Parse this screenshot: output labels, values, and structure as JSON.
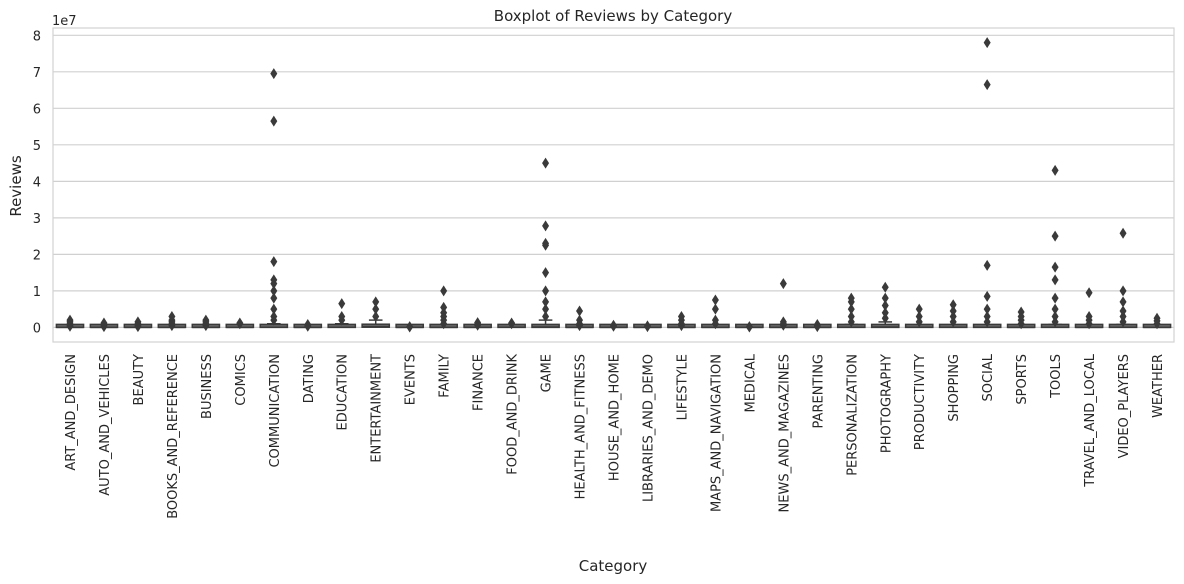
{
  "chart_data": {
    "type": "box",
    "title": "Boxplot of Reviews by Category",
    "xlabel": "Category",
    "ylabel": "Reviews",
    "y_offset_label": "1e7",
    "ylim": [
      -0.4,
      8.2
    ],
    "y_ticks": [
      0,
      1,
      2,
      3,
      4,
      5,
      6,
      7,
      8
    ],
    "y_unit_multiplier": 10000000,
    "grid": true,
    "colors": {
      "box": "#6a6a6a",
      "edge": "#3a3a3a",
      "grid": "#d0d0d0",
      "frame": "#d3d3d3",
      "text": "#262626"
    },
    "categories": [
      "ART_AND_DESIGN",
      "AUTO_AND_VEHICLES",
      "BEAUTY",
      "BOOKS_AND_REFERENCE",
      "BUSINESS",
      "COMICS",
      "COMMUNICATION",
      "DATING",
      "EDUCATION",
      "ENTERTAINMENT",
      "EVENTS",
      "FAMILY",
      "FINANCE",
      "FOOD_AND_DRINK",
      "GAME",
      "HEALTH_AND_FITNESS",
      "HOUSE_AND_HOME",
      "LIBRARIES_AND_DEMO",
      "LIFESTYLE",
      "MAPS_AND_NAVIGATION",
      "MEDICAL",
      "NEWS_AND_MAGAZINES",
      "PARENTING",
      "PERSONALIZATION",
      "PHOTOGRAPHY",
      "PRODUCTIVITY",
      "SHOPPING",
      "SOCIAL",
      "SPORTS",
      "TOOLS",
      "TRAVEL_AND_LOCAL",
      "VIDEO_PLAYERS",
      "WEATHER"
    ],
    "boxes": [
      {
        "q1": 0.0,
        "median": 0.0,
        "q3": 0.005,
        "whisker_high": 0.012,
        "outliers": [
          0.03,
          0.06,
          0.1,
          0.15,
          0.2
        ]
      },
      {
        "q1": 0.0,
        "median": 0.0,
        "q3": 0.003,
        "whisker_high": 0.008,
        "outliers": [
          0.02,
          0.05,
          0.08,
          0.12
        ]
      },
      {
        "q1": 0.0,
        "median": 0.0,
        "q3": 0.003,
        "whisker_high": 0.008,
        "outliers": [
          0.02,
          0.05,
          0.1,
          0.15
        ]
      },
      {
        "q1": 0.0,
        "median": 0.001,
        "q3": 0.01,
        "whisker_high": 0.025,
        "outliers": [
          0.05,
          0.1,
          0.15,
          0.2,
          0.3
        ]
      },
      {
        "q1": 0.0,
        "median": 0.0,
        "q3": 0.01,
        "whisker_high": 0.025,
        "outliers": [
          0.05,
          0.1,
          0.15,
          0.2
        ]
      },
      {
        "q1": 0.0,
        "median": 0.002,
        "q3": 0.02,
        "whisker_high": 0.05,
        "outliers": [
          0.1,
          0.12
        ]
      },
      {
        "q1": 0.0,
        "median": 0.005,
        "q3": 0.04,
        "whisker_high": 0.1,
        "outliers": [
          0.2,
          0.3,
          0.5,
          0.8,
          1.0,
          1.2,
          1.3,
          1.8,
          5.65,
          6.95
        ]
      },
      {
        "q1": 0.0,
        "median": 0.0,
        "q3": 0.005,
        "whisker_high": 0.012,
        "outliers": [
          0.03,
          0.05,
          0.08
        ]
      },
      {
        "q1": 0.0,
        "median": 0.005,
        "q3": 0.04,
        "whisker_high": 0.1,
        "outliers": [
          0.2,
          0.3,
          0.65
        ]
      },
      {
        "q1": 0.005,
        "median": 0.02,
        "q3": 0.08,
        "whisker_high": 0.2,
        "outliers": [
          0.3,
          0.5,
          0.7
        ]
      },
      {
        "q1": 0.0,
        "median": 0.0,
        "q3": 0.002,
        "whisker_high": 0.005,
        "outliers": [
          0.01,
          0.02
        ]
      },
      {
        "q1": 0.0,
        "median": 0.002,
        "q3": 0.02,
        "whisker_high": 0.05,
        "outliers": [
          0.1,
          0.2,
          0.3,
          0.4,
          0.55,
          1.0
        ]
      },
      {
        "q1": 0.0,
        "median": 0.001,
        "q3": 0.01,
        "whisker_high": 0.03,
        "outliers": [
          0.06,
          0.1,
          0.13
        ]
      },
      {
        "q1": 0.0,
        "median": 0.005,
        "q3": 0.03,
        "whisker_high": 0.07,
        "outliers": [
          0.1,
          0.12
        ]
      },
      {
        "q1": 0.0,
        "median": 0.01,
        "q3": 0.08,
        "whisker_high": 0.2,
        "outliers": [
          0.3,
          0.5,
          0.7,
          1.0,
          1.5,
          2.25,
          2.3,
          2.78,
          4.5
        ]
      },
      {
        "q1": 0.0,
        "median": 0.001,
        "q3": 0.01,
        "whisker_high": 0.03,
        "outliers": [
          0.05,
          0.1,
          0.2,
          0.45
        ]
      },
      {
        "q1": 0.0,
        "median": 0.0,
        "q3": 0.005,
        "whisker_high": 0.012,
        "outliers": [
          0.03,
          0.06
        ]
      },
      {
        "q1": 0.0,
        "median": 0.0,
        "q3": 0.005,
        "whisker_high": 0.01,
        "outliers": [
          0.02,
          0.04
        ]
      },
      {
        "q1": 0.0,
        "median": 0.0,
        "q3": 0.005,
        "whisker_high": 0.012,
        "outliers": [
          0.05,
          0.1,
          0.2,
          0.3
        ]
      },
      {
        "q1": 0.0,
        "median": 0.002,
        "q3": 0.02,
        "whisker_high": 0.05,
        "outliers": [
          0.1,
          0.2,
          0.5,
          0.75
        ]
      },
      {
        "q1": 0.0,
        "median": 0.0,
        "q3": 0.002,
        "whisker_high": 0.005,
        "outliers": [
          0.01,
          0.02
        ]
      },
      {
        "q1": 0.0,
        "median": 0.002,
        "q3": 0.01,
        "whisker_high": 0.03,
        "outliers": [
          0.06,
          0.1,
          0.15,
          1.2
        ]
      },
      {
        "q1": 0.0,
        "median": 0.0,
        "q3": 0.003,
        "whisker_high": 0.008,
        "outliers": [
          0.02,
          0.05,
          0.08
        ]
      },
      {
        "q1": 0.0,
        "median": 0.005,
        "q3": 0.03,
        "whisker_high": 0.08,
        "outliers": [
          0.15,
          0.3,
          0.5,
          0.7,
          0.8
        ]
      },
      {
        "q1": 0.0,
        "median": 0.01,
        "q3": 0.06,
        "whisker_high": 0.15,
        "outliers": [
          0.25,
          0.4,
          0.6,
          0.8,
          1.1
        ]
      },
      {
        "q1": 0.0,
        "median": 0.003,
        "q3": 0.03,
        "whisker_high": 0.07,
        "outliers": [
          0.15,
          0.3,
          0.5
        ]
      },
      {
        "q1": 0.0,
        "median": 0.004,
        "q3": 0.03,
        "whisker_high": 0.07,
        "outliers": [
          0.15,
          0.3,
          0.45,
          0.62
        ]
      },
      {
        "q1": 0.0,
        "median": 0.003,
        "q3": 0.03,
        "whisker_high": 0.07,
        "outliers": [
          0.15,
          0.3,
          0.5,
          0.85,
          1.7,
          6.65,
          7.8
        ]
      },
      {
        "q1": 0.0,
        "median": 0.002,
        "q3": 0.02,
        "whisker_high": 0.05,
        "outliers": [
          0.1,
          0.2,
          0.3,
          0.42
        ]
      },
      {
        "q1": 0.0,
        "median": 0.003,
        "q3": 0.03,
        "whisker_high": 0.08,
        "outliers": [
          0.15,
          0.3,
          0.5,
          0.8,
          1.3,
          1.65,
          2.5,
          4.3
        ]
      },
      {
        "q1": 0.0,
        "median": 0.002,
        "q3": 0.02,
        "whisker_high": 0.05,
        "outliers": [
          0.1,
          0.2,
          0.3,
          0.95
        ]
      },
      {
        "q1": 0.0,
        "median": 0.003,
        "q3": 0.03,
        "whisker_high": 0.08,
        "outliers": [
          0.15,
          0.3,
          0.45,
          0.7,
          1.0,
          2.58
        ]
      },
      {
        "q1": 0.0,
        "median": 0.002,
        "q3": 0.02,
        "whisker_high": 0.05,
        "outliers": [
          0.1,
          0.18,
          0.25
        ]
      }
    ]
  }
}
